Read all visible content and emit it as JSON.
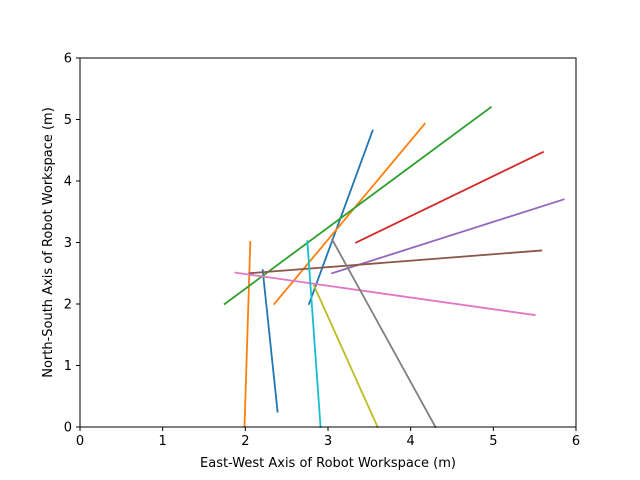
{
  "chart_data": {
    "type": "line",
    "xlabel": "East-West Axis of Robot Workspace (m)",
    "ylabel": "North-South Axis of Robot Workspace (m)",
    "xlim": [
      0,
      6
    ],
    "ylim": [
      0,
      6
    ],
    "xticks": [
      "0",
      "1",
      "2",
      "3",
      "4",
      "5",
      "6"
    ],
    "yticks": [
      "0",
      "1",
      "2",
      "3",
      "4",
      "5",
      "6"
    ],
    "grid": false,
    "series": [
      {
        "color": "#1f77b4",
        "x": [
          2.77,
          3.54
        ],
        "y": [
          2.0,
          4.82
        ]
      },
      {
        "color": "#1f77b4",
        "x": [
          2.21,
          2.39
        ],
        "y": [
          2.55,
          0.25
        ]
      },
      {
        "color": "#ff7f0e",
        "x": [
          2.35,
          4.17
        ],
        "y": [
          2.0,
          4.93
        ]
      },
      {
        "color": "#ff7f0e",
        "x": [
          1.99,
          2.06
        ],
        "y": [
          0.0,
          3.01
        ]
      },
      {
        "color": "#2ca02c",
        "x": [
          1.75,
          4.97
        ],
        "y": [
          2.0,
          5.2
        ]
      },
      {
        "color": "#d62728",
        "x": [
          3.34,
          5.6
        ],
        "y": [
          3.0,
          4.47
        ]
      },
      {
        "color": "#9467bd",
        "x": [
          3.05,
          5.85
        ],
        "y": [
          2.5,
          3.7
        ]
      },
      {
        "color": "#8c564b",
        "x": [
          2.05,
          5.58
        ],
        "y": [
          2.5,
          2.87
        ]
      },
      {
        "color": "#e377c2",
        "x": [
          1.88,
          5.5
        ],
        "y": [
          2.51,
          1.82
        ]
      },
      {
        "color": "#7f7f7f",
        "x": [
          3.05,
          4.3
        ],
        "y": [
          3.05,
          0.0
        ]
      },
      {
        "color": "#bcbd22",
        "x": [
          2.83,
          3.6
        ],
        "y": [
          2.3,
          0.0
        ]
      },
      {
        "color": "#17becf",
        "x": [
          2.75,
          2.91
        ],
        "y": [
          3.02,
          0.0
        ]
      }
    ]
  }
}
